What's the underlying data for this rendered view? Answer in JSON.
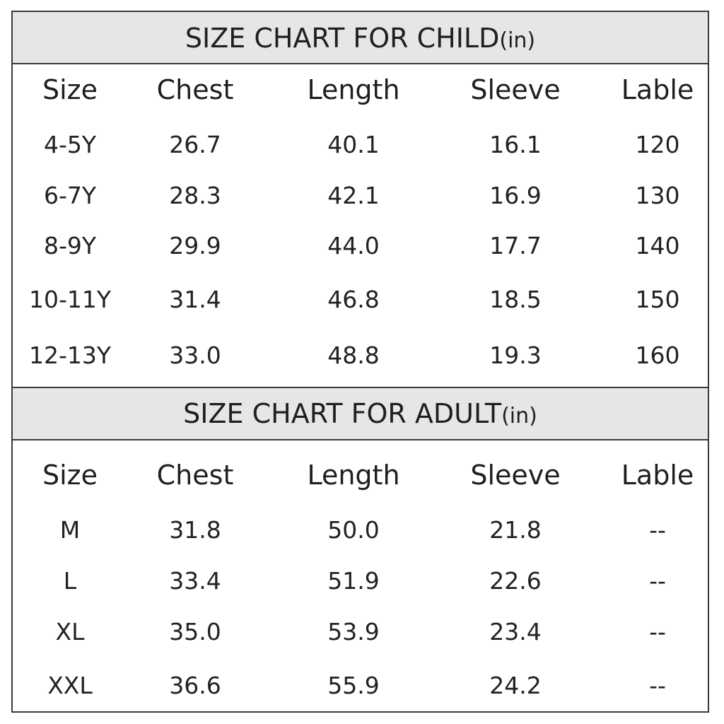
{
  "child": {
    "title": "SIZE CHART FOR CHILD",
    "unit": "(in)",
    "headers": [
      "Size",
      "Chest",
      "Length",
      "Sleeve",
      "Lable"
    ],
    "rows": [
      [
        "4-5Y",
        "26.7",
        "40.1",
        "16.1",
        "120"
      ],
      [
        "6-7Y",
        "28.3",
        "42.1",
        "16.9",
        "130"
      ],
      [
        "8-9Y",
        "29.9",
        "44.0",
        "17.7",
        "140"
      ],
      [
        "10-11Y",
        "31.4",
        "46.8",
        "18.5",
        "150"
      ],
      [
        "12-13Y",
        "33.0",
        "48.8",
        "19.3",
        "160"
      ]
    ]
  },
  "adult": {
    "title": "SIZE CHART FOR ADULT",
    "unit": "(in)",
    "headers": [
      "Size",
      "Chest",
      "Length",
      "Sleeve",
      "Lable"
    ],
    "rows": [
      [
        "M",
        "31.8",
        "50.0",
        "21.8",
        "--"
      ],
      [
        "L",
        "33.4",
        "51.9",
        "22.6",
        "--"
      ],
      [
        "XL",
        "35.0",
        "53.9",
        "23.4",
        "--"
      ],
      [
        "XXL",
        "36.6",
        "55.9",
        "24.2",
        "--"
      ]
    ]
  }
}
